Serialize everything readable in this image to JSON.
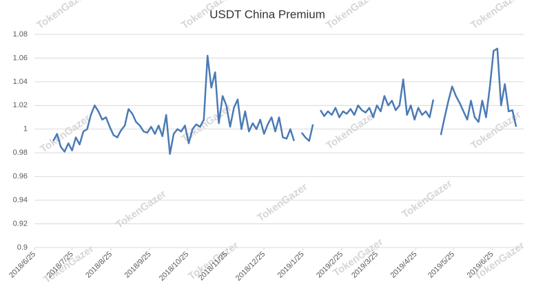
{
  "chart_data": {
    "type": "line",
    "title": "USDT China Premium",
    "watermark": "TokenGazer",
    "color": "#4a7ab5",
    "x": [
      "2018/7/10",
      "2018/7/13",
      "2018/7/16",
      "2018/7/19",
      "2018/7/22",
      "2018/7/25",
      "2018/7/28",
      "2018/7/31",
      "2018/8/3",
      "2018/8/6",
      "2018/8/9",
      "2018/8/12",
      "2018/8/15",
      "2018/8/18",
      "2018/8/21",
      "2018/8/24",
      "2018/8/27",
      "2018/8/30",
      "2018/9/2",
      "2018/9/5",
      "2018/9/8",
      "2018/9/11",
      "2018/9/14",
      "2018/9/17",
      "2018/9/20",
      "2018/9/23",
      "2018/9/26",
      "2018/9/29",
      "2018/10/2",
      "2018/10/5",
      "2018/10/8",
      "2018/10/11",
      "2018/10/14",
      "2018/10/17",
      "2018/10/20",
      "2018/10/23",
      "2018/10/26",
      "2018/10/29",
      "2018/11/1",
      "2018/11/4",
      "2018/11/7",
      "2018/11/10",
      "2018/11/13",
      "2018/11/16",
      "2018/11/19",
      "2018/11/22",
      "2018/11/25",
      "2018/11/28",
      "2018/12/1",
      "2018/12/4",
      "2018/12/7",
      "2018/12/10",
      "2018/12/13",
      "2018/12/16",
      "2018/12/19",
      "2018/12/22",
      "2018/12/25",
      "2018/12/28",
      "2018/12/31",
      "2019/1/3",
      "2019/1/6",
      "2019/1/9",
      "2019/1/12",
      "2019/1/15",
      "2019/1/18",
      "2019/1/21",
      "2019/1/24",
      "2019/1/27",
      "2019/1/30",
      "2019/2/2",
      "2019/2/5",
      "2019/2/8",
      "2019/2/11",
      "2019/2/14",
      "2019/2/17",
      "2019/2/20",
      "2019/2/23",
      "2019/2/26",
      "2019/3/1",
      "2019/3/4",
      "2019/3/7",
      "2019/3/10",
      "2019/3/13",
      "2019/3/16",
      "2019/3/19",
      "2019/3/22",
      "2019/3/25",
      "2019/3/28",
      "2019/3/31",
      "2019/4/3",
      "2019/4/6",
      "2019/4/9",
      "2019/4/12",
      "2019/4/15",
      "2019/4/18",
      "2019/4/21",
      "2019/4/24",
      "2019/4/27",
      "2019/4/30",
      "2019/5/3",
      "2019/5/6",
      "2019/5/9",
      "2019/5/12",
      "2019/5/15",
      "2019/5/18",
      "2019/5/21",
      "2019/5/24",
      "2019/5/27",
      "2019/5/30",
      "2019/6/2",
      "2019/6/5",
      "2019/6/8",
      "2019/6/11",
      "2019/6/14",
      "2019/6/17",
      "2019/6/20",
      "2019/6/23",
      "2019/6/26",
      "2019/6/29",
      "2019/7/2",
      "2019/7/5",
      "2019/7/8",
      "2019/7/11",
      "2019/7/14"
    ],
    "values": [
      0.99,
      0.996,
      0.985,
      0.981,
      0.988,
      0.982,
      0.993,
      0.987,
      0.998,
      1.0,
      1.012,
      1.02,
      1.015,
      1.008,
      1.01,
      1.002,
      0.995,
      0.993,
      0.999,
      1.003,
      1.017,
      1.013,
      1.006,
      1.003,
      0.998,
      0.997,
      1.002,
      0.996,
      1.003,
      0.994,
      1.012,
      0.979,
      0.996,
      1.0,
      0.998,
      1.003,
      0.988,
      1.0,
      1.004,
      1.002,
      1.008,
      1.062,
      1.035,
      1.048,
      1.005,
      1.028,
      1.02,
      1.002,
      1.018,
      1.025,
      1.0,
      1.015,
      0.998,
      1.005,
      1.0,
      1.008,
      0.996,
      1.004,
      1.01,
      0.998,
      1.01,
      0.993,
      0.992,
      1.0,
      0.99,
      null,
      0.997,
      0.993,
      0.99,
      1.004,
      null,
      1.016,
      1.011,
      1.015,
      1.012,
      1.018,
      1.01,
      1.015,
      1.013,
      1.017,
      1.012,
      1.02,
      1.016,
      1.014,
      1.018,
      1.01,
      1.02,
      1.015,
      1.028,
      1.02,
      1.024,
      1.016,
      1.02,
      1.042,
      1.012,
      1.02,
      1.008,
      1.018,
      1.012,
      1.015,
      1.01,
      1.025,
      null,
      0.995,
      1.01,
      1.024,
      1.036,
      1.028,
      1.022,
      1.015,
      1.008,
      1.024,
      1.01,
      1.006,
      1.024,
      1.01,
      1.035,
      1.066,
      1.068,
      1.02,
      1.038,
      1.015,
      1.016,
      1.002
    ],
    "xlim": [
      "2018/6/25",
      "2019/7/20"
    ],
    "xticks": [
      "2018/6/25",
      "2018/7/25",
      "2018/8/25",
      "2018/9/25",
      "2018/10/25",
      "2018/11/25",
      "2018/12/25",
      "2019/1/25",
      "2019/2/25",
      "2019/3/25",
      "2019/4/25",
      "2019/5/25",
      "2019/6/25"
    ],
    "ylim": [
      0.9,
      1.08
    ],
    "yticks": [
      0.9,
      0.92,
      0.94,
      0.96,
      0.98,
      1,
      1.02,
      1.04,
      1.06,
      1.08
    ],
    "grid": true
  }
}
